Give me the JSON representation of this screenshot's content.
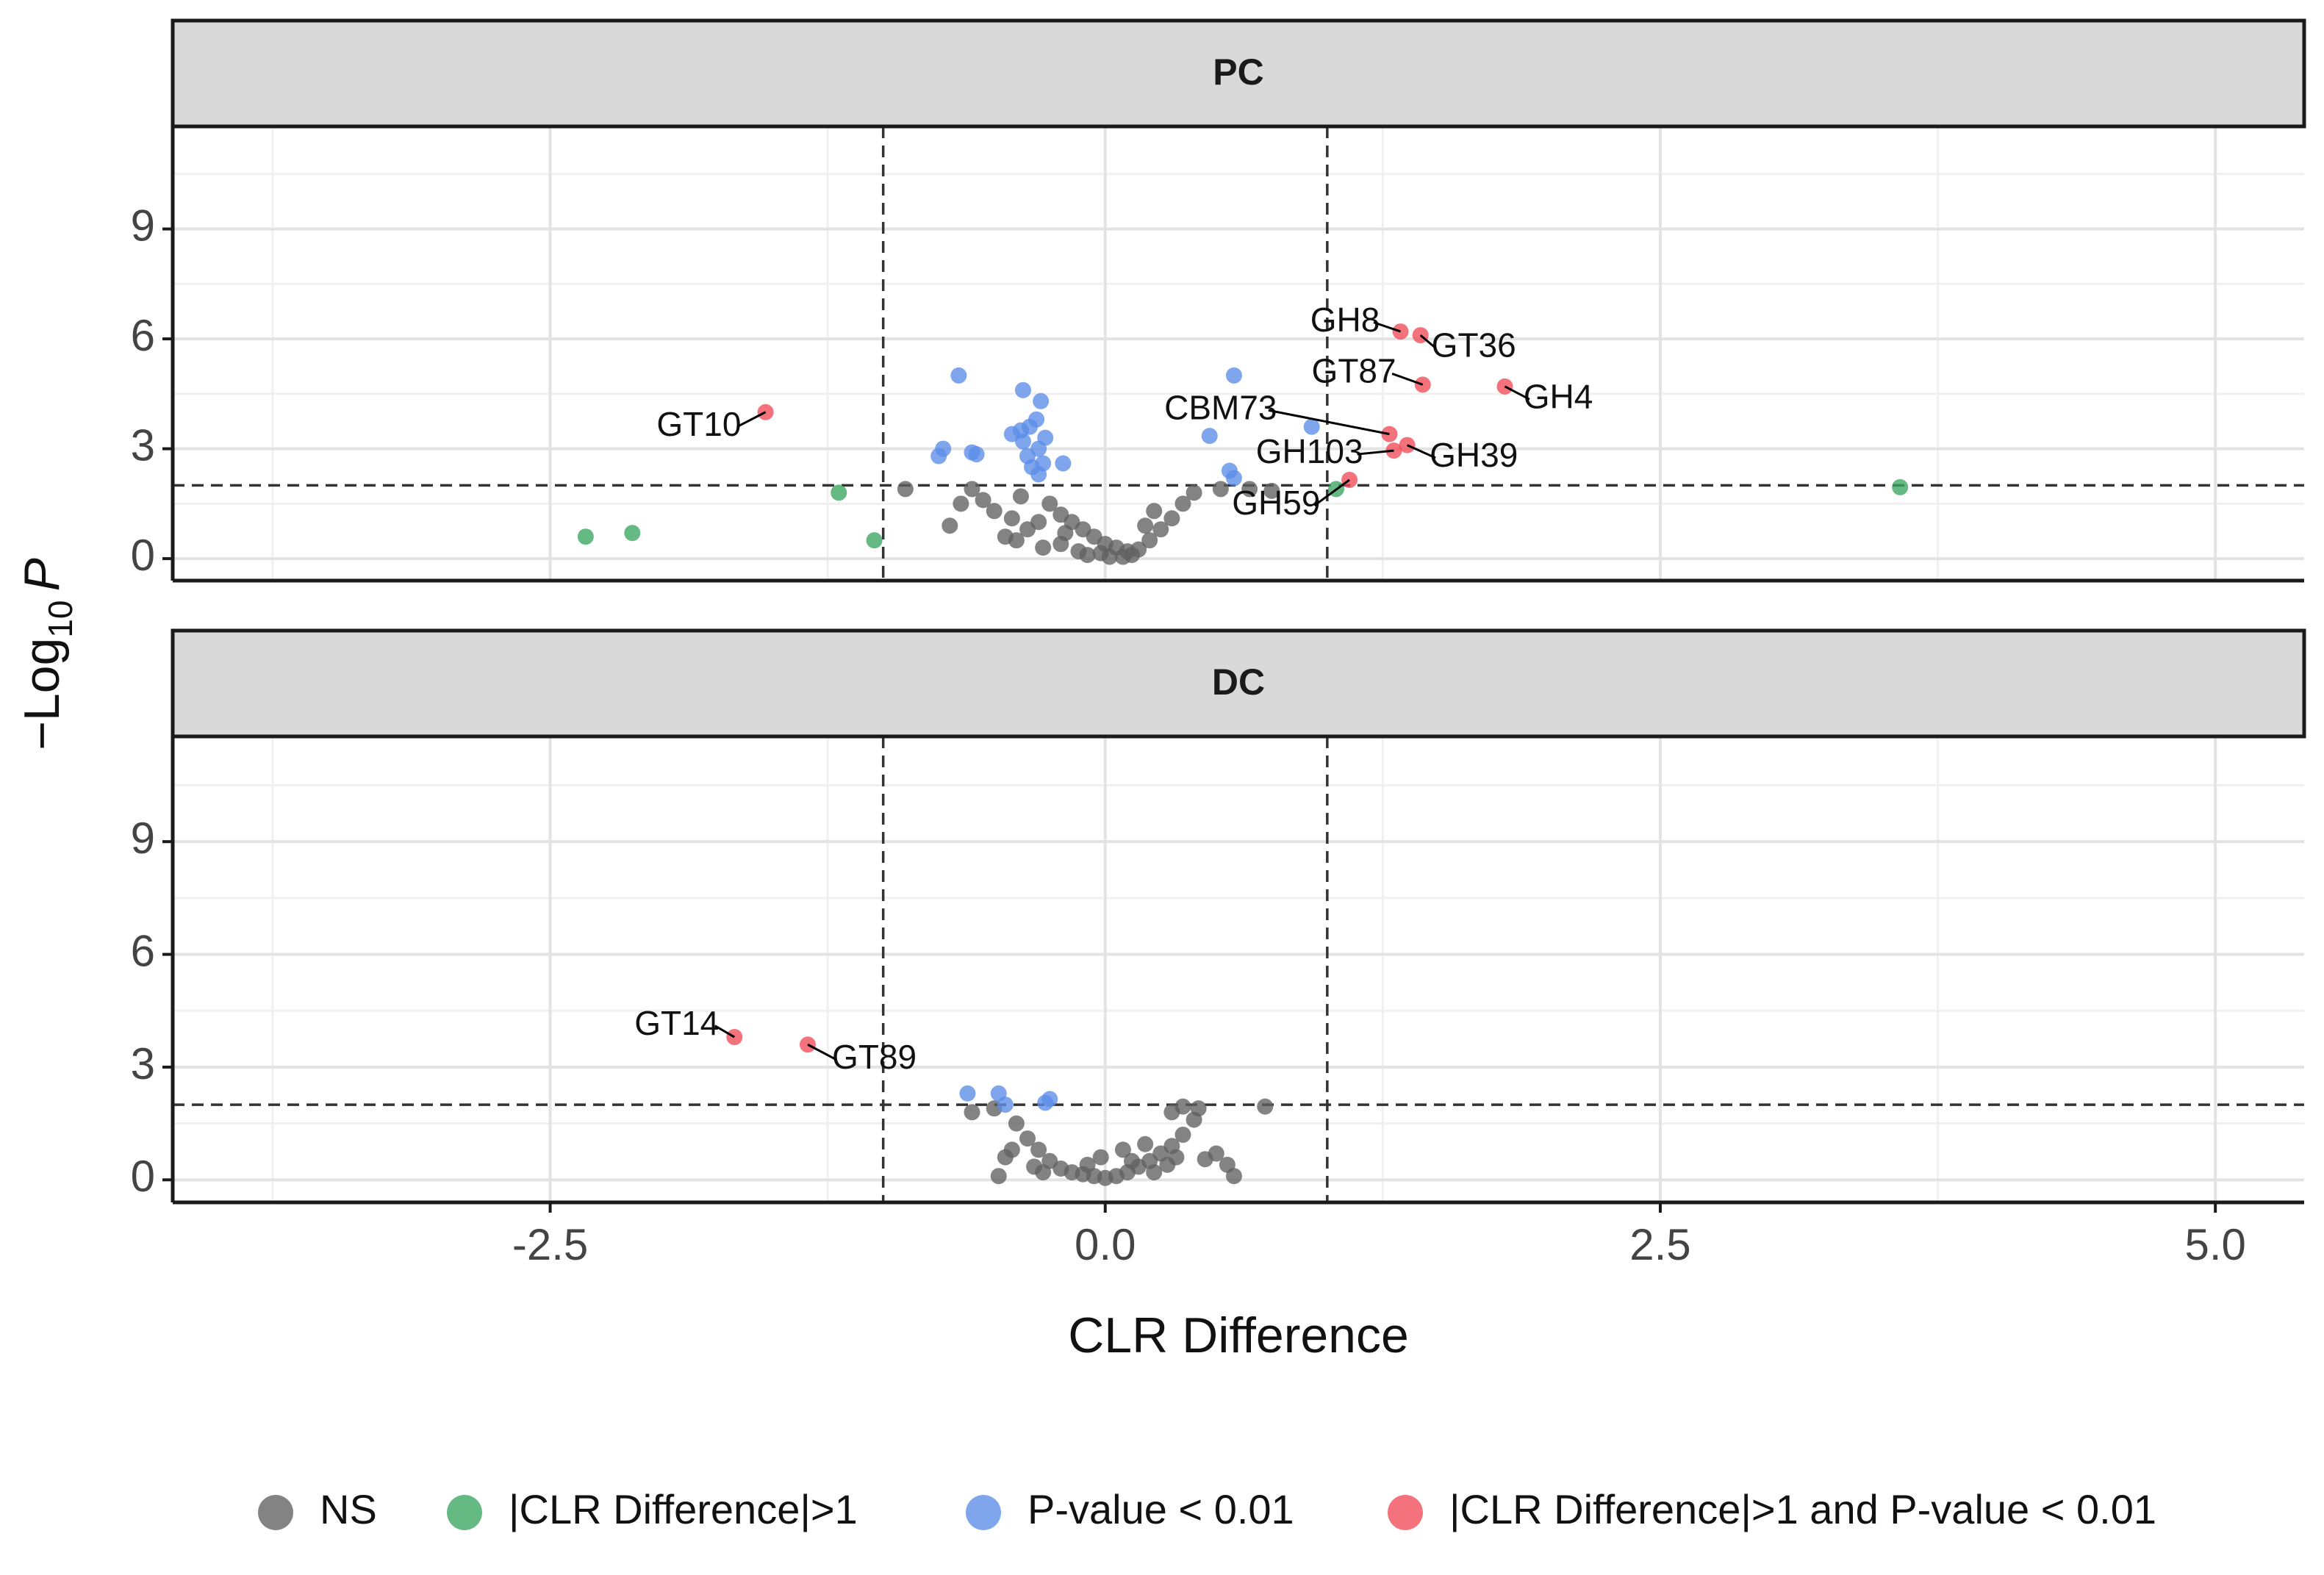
{
  "chart_data": {
    "type": "scatter",
    "title": "",
    "xlabel": "CLR Difference",
    "ylabel_prefix": "−Log",
    "ylabel_sub": "10",
    "ylabel_var": "P",
    "xlim": [
      -4.2,
      5.4
    ],
    "ylim": [
      -0.6,
      11.8
    ],
    "xticks": [
      -2.5,
      0.0,
      2.5,
      5.0
    ],
    "xtick_labels": [
      "-2.5",
      "0.0",
      "2.5",
      "5.0"
    ],
    "yticks": [
      0,
      3,
      6,
      9
    ],
    "ytick_labels": [
      "0",
      "3",
      "6",
      "9"
    ],
    "vlines": [
      -1,
      1
    ],
    "hline": 2,
    "colors": {
      "NS": "#606060",
      "CLR": "#3aa55f",
      "P": "#5b8de8",
      "Both": "#ef4a57"
    },
    "legend": [
      {
        "key": "NS",
        "label": "NS"
      },
      {
        "key": "CLR",
        "label": "|CLR Difference|>1"
      },
      {
        "key": "P",
        "label": "P-value < 0.01"
      },
      {
        "key": "Both",
        "label": "|CLR Difference|>1 and P-value < 0.01"
      }
    ],
    "panels": [
      {
        "strip": "PC",
        "points": {
          "NS": [
            [
              -0.25,
              1.5
            ],
            [
              -0.2,
              1.2
            ],
            [
              -0.15,
              1.0
            ],
            [
              -0.1,
              0.8
            ],
            [
              -0.05,
              0.6
            ],
            [
              0,
              0.4
            ],
            [
              0.05,
              0.3
            ],
            [
              0.1,
              0.2
            ],
            [
              0.15,
              0.25
            ],
            [
              0.2,
              0.5
            ],
            [
              0.25,
              0.8
            ],
            [
              0.3,
              1.1
            ],
            [
              0.35,
              1.5
            ],
            [
              0.4,
              1.8
            ],
            [
              -0.3,
              1.0
            ],
            [
              -0.35,
              0.8
            ],
            [
              -0.4,
              0.5
            ],
            [
              -0.45,
              0.6
            ],
            [
              -0.5,
              1.3
            ],
            [
              -0.55,
              1.6
            ],
            [
              -0.6,
              1.9
            ],
            [
              -0.65,
              1.5
            ],
            [
              -0.7,
              0.9
            ],
            [
              -0.2,
              0.4
            ],
            [
              -0.12,
              0.2
            ],
            [
              -0.08,
              0.1
            ],
            [
              0.02,
              0.05
            ],
            [
              0.08,
              0.05
            ],
            [
              0.12,
              0.1
            ],
            [
              -0.18,
              0.7
            ],
            [
              -0.28,
              0.3
            ],
            [
              0.18,
              0.9
            ],
            [
              0.22,
              1.3
            ],
            [
              -0.38,
              1.7
            ],
            [
              -0.42,
              1.1
            ],
            [
              -0.02,
              0.15
            ],
            [
              -0.9,
              1.9
            ],
            [
              0.52,
              1.9
            ],
            [
              0.65,
              1.9
            ],
            [
              0.75,
              1.85
            ]
          ],
          "CLR": [
            [
              -2.34,
              0.6
            ],
            [
              -2.13,
              0.7
            ],
            [
              -1.2,
              1.8
            ],
            [
              -1.04,
              0.5
            ],
            [
              3.58,
              1.95
            ],
            [
              1.04,
              1.9
            ]
          ],
          "P": [
            [
              -0.66,
              5.0
            ],
            [
              -0.75,
              2.8
            ],
            [
              -0.73,
              3.0
            ],
            [
              -0.6,
              2.9
            ],
            [
              -0.58,
              2.85
            ],
            [
              -0.42,
              3.4
            ],
            [
              -0.38,
              3.5
            ],
            [
              -0.34,
              3.6
            ],
            [
              -0.31,
              3.8
            ],
            [
              -0.37,
              3.2
            ],
            [
              -0.35,
              2.8
            ],
            [
              -0.33,
              2.5
            ],
            [
              -0.3,
              2.3
            ],
            [
              -0.28,
              2.6
            ],
            [
              -0.29,
              4.3
            ],
            [
              -0.37,
              4.6
            ],
            [
              -0.27,
              3.3
            ],
            [
              -0.19,
              2.6
            ],
            [
              -0.3,
              3.0
            ],
            [
              0.58,
              5.0
            ],
            [
              0.47,
              3.35
            ],
            [
              0.56,
              2.4
            ],
            [
              0.58,
              2.2
            ],
            [
              0.93,
              3.6
            ]
          ],
          "Both": [
            [
              -1.53,
              4.0
            ],
            [
              1.33,
              6.2
            ],
            [
              1.42,
              6.1
            ],
            [
              1.43,
              4.75
            ],
            [
              1.8,
              4.7
            ],
            [
              1.28,
              3.4
            ],
            [
              1.36,
              3.1
            ],
            [
              1.3,
              2.95
            ],
            [
              1.1,
              2.15
            ]
          ]
        },
        "labels": [
          {
            "text": "GH8",
            "x": 1.33,
            "y": 6.2,
            "lx": 1.08,
            "ly": 6.45
          },
          {
            "text": "GT36",
            "x": 1.42,
            "y": 6.1,
            "lx": 1.66,
            "ly": 5.75
          },
          {
            "text": "GT87",
            "x": 1.43,
            "y": 4.75,
            "lx": 1.12,
            "ly": 5.05
          },
          {
            "text": "GH4",
            "x": 1.8,
            "y": 4.7,
            "lx": 2.04,
            "ly": 4.35
          },
          {
            "text": "CBM73",
            "x": 1.28,
            "y": 3.4,
            "lx": 0.52,
            "ly": 4.05
          },
          {
            "text": "GH103",
            "x": 1.3,
            "y": 2.95,
            "lx": 0.92,
            "ly": 2.85
          },
          {
            "text": "GH39",
            "x": 1.36,
            "y": 3.1,
            "lx": 1.66,
            "ly": 2.75
          },
          {
            "text": "GH59",
            "x": 1.1,
            "y": 2.15,
            "lx": 0.77,
            "ly": 1.45
          },
          {
            "text": "GT10",
            "x": -1.53,
            "y": 4.0,
            "lx": -1.83,
            "ly": 3.6
          }
        ]
      },
      {
        "strip": "DC",
        "points": {
          "NS": [
            [
              -0.6,
              1.8
            ],
            [
              -0.5,
              1.9
            ],
            [
              -0.4,
              1.5
            ],
            [
              -0.35,
              1.1
            ],
            [
              -0.3,
              0.8
            ],
            [
              -0.25,
              0.5
            ],
            [
              -0.2,
              0.3
            ],
            [
              -0.15,
              0.2
            ],
            [
              -0.1,
              0.15
            ],
            [
              -0.05,
              0.1
            ],
            [
              0,
              0.05
            ],
            [
              0.05,
              0.1
            ],
            [
              0.1,
              0.2
            ],
            [
              0.15,
              0.35
            ],
            [
              0.2,
              0.5
            ],
            [
              0.25,
              0.7
            ],
            [
              0.3,
              0.9
            ],
            [
              0.35,
              1.2
            ],
            [
              0.4,
              1.6
            ],
            [
              0.42,
              1.9
            ],
            [
              0.35,
              1.95
            ],
            [
              0.3,
              1.8
            ],
            [
              0.5,
              0.7
            ],
            [
              0.55,
              0.4
            ],
            [
              0.58,
              0.1
            ],
            [
              0.72,
              1.95
            ],
            [
              -0.45,
              0.6
            ],
            [
              -0.42,
              0.8
            ],
            [
              -0.48,
              0.1
            ],
            [
              0.08,
              0.8
            ],
            [
              0.12,
              0.5
            ],
            [
              -0.08,
              0.4
            ],
            [
              -0.02,
              0.6
            ],
            [
              0.22,
              0.2
            ],
            [
              0.28,
              0.4
            ],
            [
              0.32,
              0.6
            ],
            [
              0.18,
              0.95
            ],
            [
              -0.28,
              0.2
            ],
            [
              -0.32,
              0.35
            ],
            [
              0.45,
              0.55
            ]
          ],
          "CLR": [],
          "P": [
            [
              -0.62,
              2.3
            ],
            [
              -0.48,
              2.3
            ],
            [
              -0.45,
              2.0
            ],
            [
              -0.27,
              2.05
            ],
            [
              -0.25,
              2.15
            ]
          ],
          "Both": [
            [
              -1.67,
              3.8
            ],
            [
              -1.34,
              3.6
            ]
          ]
        },
        "labels": [
          {
            "text": "GT14",
            "x": -1.67,
            "y": 3.8,
            "lx": -1.93,
            "ly": 4.1
          },
          {
            "text": "GT89",
            "x": -1.34,
            "y": 3.6,
            "lx": -1.04,
            "ly": 3.2
          }
        ]
      }
    ]
  }
}
